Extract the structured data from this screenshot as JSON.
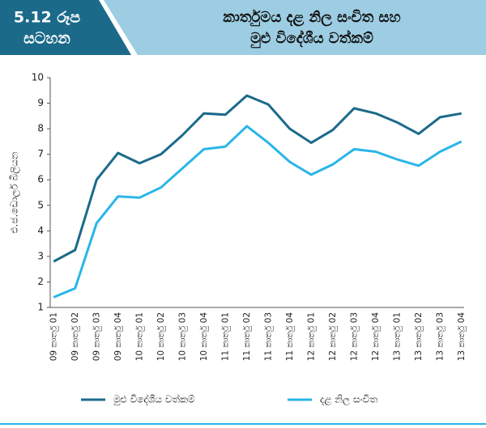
{
  "chart_data": {
    "type": "line",
    "figure_label": [
      "5.12 රූප",
      "සටහන"
    ],
    "title": [
      "කාර්තුමය දළ නිල සංචිත සහ",
      "මුළු විදේශීය වත්කම්"
    ],
    "y_label": "එ.ජ.ඩොලර් බිලියන",
    "categories": [
      "09 කාර්තු 01",
      "09 කාර්තු 02",
      "09 කාර්තු 03",
      "09 කාර්තු 04",
      "10 කාර්තු 01",
      "10 කාර්තු 02",
      "10 කාර්තු 03",
      "10 කාර්තු 04",
      "11 කාර්තු 01",
      "11 කාර්තු 02",
      "11 කාර්තු 03",
      "11 කාර්තු 04",
      "12 කාර්තු 01",
      "12 කාර්තු 02",
      "12 කාර්තු 03",
      "12 කාර්තු 04",
      "13 කාර්තු 01",
      "13 කාර්තු 02",
      "13 කාර්තු 03",
      "13 කාර්තු 04"
    ],
    "series": [
      {
        "name": "මුළු විදේශීය වත්කම්",
        "color": "#1b6a8a",
        "values": [
          2.8,
          3.25,
          6.0,
          7.05,
          6.65,
          7.0,
          7.75,
          8.6,
          8.55,
          9.3,
          8.95,
          8.0,
          7.45,
          7.95,
          8.8,
          8.6,
          8.25,
          7.8,
          8.45,
          8.6
        ]
      },
      {
        "name": "දළ නිල සංචිත",
        "color": "#29b6e8",
        "values": [
          1.4,
          1.75,
          4.3,
          5.35,
          5.3,
          5.7,
          6.45,
          7.2,
          7.3,
          8.1,
          7.45,
          6.7,
          6.2,
          6.6,
          7.2,
          7.1,
          6.8,
          6.55,
          7.1,
          7.5
        ]
      }
    ],
    "ylim": [
      1,
      10
    ],
    "yticks": [
      1,
      2,
      3,
      4,
      5,
      6,
      7,
      8,
      9,
      10
    ],
    "grid": false
  }
}
